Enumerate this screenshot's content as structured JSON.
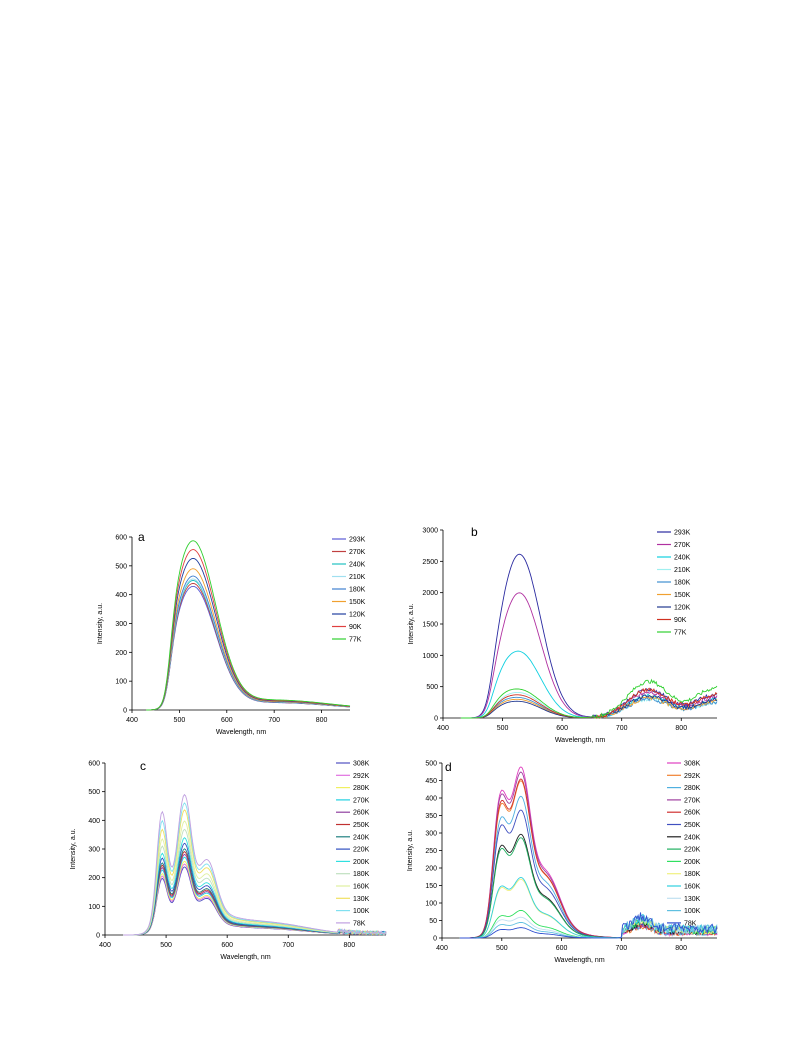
{
  "chart_data": [
    {
      "type": "line",
      "panel_label": "a",
      "xlabel": "Wavelength, nm",
      "ylabel": "Intensity, a.u.",
      "xlim": [
        400,
        860
      ],
      "ylim": [
        0,
        600
      ],
      "xticks": [
        400,
        500,
        600,
        700,
        800
      ],
      "yticks": [
        0,
        100,
        200,
        300,
        400,
        500,
        600
      ],
      "legend_position": "right",
      "series": [
        {
          "name": "293K",
          "color": "#5b5bd6",
          "peak_shoulder": 420,
          "peak_main": 420,
          "red_tail": 0
        },
        {
          "name": "270K",
          "color": "#c04040",
          "peak_shoulder": 430,
          "peak_main": 430,
          "red_tail": 0
        },
        {
          "name": "240K",
          "color": "#20c0c0",
          "peak_shoulder": 440,
          "peak_main": 440,
          "red_tail": 0
        },
        {
          "name": "210K",
          "color": "#a0e0f0",
          "peak_shoulder": 445,
          "peak_main": 445,
          "red_tail": 0
        },
        {
          "name": "180K",
          "color": "#4080d0",
          "peak_shoulder": 455,
          "peak_main": 455,
          "red_tail": 0
        },
        {
          "name": "150K",
          "color": "#f0a030",
          "peak_shoulder": 480,
          "peak_main": 480,
          "red_tail": 0
        },
        {
          "name": "120K",
          "color": "#2040a0",
          "peak_shoulder": 515,
          "peak_main": 515,
          "red_tail": 0
        },
        {
          "name": "90K",
          "color": "#e04040",
          "peak_shoulder": 545,
          "peak_main": 545,
          "red_tail": 0
        },
        {
          "name": "77K",
          "color": "#30d030",
          "peak_shoulder": 575,
          "peak_main": 575,
          "red_tail": 0
        }
      ]
    },
    {
      "type": "line",
      "panel_label": "b",
      "xlabel": "Wavelength, nm",
      "ylabel": "Intensity, a.u.",
      "xlim": [
        400,
        860
      ],
      "ylim": [
        0,
        3000
      ],
      "xticks": [
        400,
        500,
        600,
        700,
        800
      ],
      "yticks": [
        0,
        500,
        1000,
        1500,
        2000,
        2500,
        3000
      ],
      "legend_position": "right",
      "series": [
        {
          "name": "293K",
          "color": "#2a2aa0",
          "peak_shoulder": 1800,
          "peak_main": 2620,
          "red_tail": 450
        },
        {
          "name": "270K",
          "color": "#b030a0",
          "peak_shoulder": 1400,
          "peak_main": 2000,
          "red_tail": 400
        },
        {
          "name": "240K",
          "color": "#10d0e0",
          "peak_shoulder": 880,
          "peak_main": 1050,
          "red_tail": 350
        },
        {
          "name": "210K",
          "color": "#a0f0f0",
          "peak_shoulder": 350,
          "peak_main": 400,
          "red_tail": 300
        },
        {
          "name": "180K",
          "color": "#4090d0",
          "peak_shoulder": 300,
          "peak_main": 320,
          "red_tail": 300
        },
        {
          "name": "150K",
          "color": "#f0a030",
          "peak_shoulder": 270,
          "peak_main": 290,
          "red_tail": 320
        },
        {
          "name": "120K",
          "color": "#203890",
          "peak_shoulder": 240,
          "peak_main": 260,
          "red_tail": 350
        },
        {
          "name": "90K",
          "color": "#d03020",
          "peak_shoulder": 330,
          "peak_main": 360,
          "red_tail": 450
        },
        {
          "name": "77K",
          "color": "#30d030",
          "peak_shoulder": 420,
          "peak_main": 450,
          "red_tail": 580
        }
      ]
    },
    {
      "type": "line",
      "panel_label": "c",
      "xlabel": "Wavelength, nm",
      "ylabel": "Intensity, a.u.",
      "xlim": [
        400,
        860
      ],
      "ylim": [
        0,
        600
      ],
      "xticks": [
        400,
        500,
        600,
        700,
        800
      ],
      "yticks": [
        0,
        100,
        200,
        300,
        400,
        500,
        600
      ],
      "legend_position": "right",
      "series": [
        {
          "name": "308K",
          "color": "#5050c0",
          "peak_shoulder": 235,
          "peak_main": 245,
          "red_tail": 0
        },
        {
          "name": "292K",
          "color": "#e070e0",
          "peak_shoulder": 245,
          "peak_main": 255,
          "red_tail": 0
        },
        {
          "name": "280K",
          "color": "#f0f060",
          "peak_shoulder": 255,
          "peak_main": 265,
          "red_tail": 0
        },
        {
          "name": "270K",
          "color": "#20d0e0",
          "peak_shoulder": 270,
          "peak_main": 280,
          "red_tail": 0
        },
        {
          "name": "260K",
          "color": "#9040a0",
          "peak_shoulder": 280,
          "peak_main": 290,
          "red_tail": 0
        },
        {
          "name": "250K",
          "color": "#c03030",
          "peak_shoulder": 290,
          "peak_main": 300,
          "red_tail": 0
        },
        {
          "name": "240K",
          "color": "#208080",
          "peak_shoulder": 300,
          "peak_main": 310,
          "red_tail": 0
        },
        {
          "name": "220K",
          "color": "#3050c0",
          "peak_shoulder": 320,
          "peak_main": 330,
          "red_tail": 0
        },
        {
          "name": "200K",
          "color": "#30e0e0",
          "peak_shoulder": 340,
          "peak_main": 350,
          "red_tail": 0
        },
        {
          "name": "180K",
          "color": "#c0e0c0",
          "peak_shoulder": 370,
          "peak_main": 380,
          "red_tail": 0
        },
        {
          "name": "160K",
          "color": "#e0f0a0",
          "peak_shoulder": 400,
          "peak_main": 410,
          "red_tail": 0
        },
        {
          "name": "130K",
          "color": "#f0e060",
          "peak_shoulder": 440,
          "peak_main": 450,
          "red_tail": 0
        },
        {
          "name": "100K",
          "color": "#80e0f0",
          "peak_shoulder": 480,
          "peak_main": 475,
          "red_tail": 0
        },
        {
          "name": "78K",
          "color": "#c0a0e0",
          "peak_shoulder": 520,
          "peak_main": 505,
          "red_tail": 0
        }
      ]
    },
    {
      "type": "line",
      "panel_label": "d",
      "xlabel": "Wavelength, nm",
      "ylabel": "Intensity, a.u.",
      "xlim": [
        400,
        860
      ],
      "ylim": [
        0,
        500
      ],
      "xticks": [
        400,
        500,
        600,
        700,
        800
      ],
      "yticks": [
        0,
        50,
        100,
        150,
        200,
        250,
        300,
        350,
        400,
        450,
        500
      ],
      "legend_position": "right",
      "series": [
        {
          "name": "308K",
          "color": "#e040c0",
          "peak_shoulder": 440,
          "peak_main": 495,
          "red_tail": 30
        },
        {
          "name": "292K",
          "color": "#f08030",
          "peak_shoulder": 400,
          "peak_main": 455,
          "red_tail": 30
        },
        {
          "name": "280K",
          "color": "#50b0e0",
          "peak_shoulder": 360,
          "peak_main": 410,
          "red_tail": 30
        },
        {
          "name": "270K",
          "color": "#a040a0",
          "peak_shoulder": 430,
          "peak_main": 480,
          "red_tail": 35
        },
        {
          "name": "260K",
          "color": "#d03030",
          "peak_shoulder": 410,
          "peak_main": 460,
          "red_tail": 35
        },
        {
          "name": "250K",
          "color": "#4050c0",
          "peak_shoulder": 340,
          "peak_main": 370,
          "red_tail": 40
        },
        {
          "name": "240K",
          "color": "#202020",
          "peak_shoulder": 280,
          "peak_main": 300,
          "red_tail": 40
        },
        {
          "name": "220K",
          "color": "#20b060",
          "peak_shoulder": 270,
          "peak_main": 290,
          "red_tail": 45
        },
        {
          "name": "200K",
          "color": "#30e060",
          "peak_shoulder": 65,
          "peak_main": 80,
          "red_tail": 45
        },
        {
          "name": "180K",
          "color": "#f0f080",
          "peak_shoulder": 150,
          "peak_main": 170,
          "red_tail": 45
        },
        {
          "name": "160K",
          "color": "#30d0e0",
          "peak_shoulder": 155,
          "peak_main": 175,
          "red_tail": 50
        },
        {
          "name": "130K",
          "color": "#c0e0f0",
          "peak_shoulder": 55,
          "peak_main": 60,
          "red_tail": 50
        },
        {
          "name": "100K",
          "color": "#60c0e0",
          "peak_shoulder": 40,
          "peak_main": 45,
          "red_tail": 55
        },
        {
          "name": "78K",
          "color": "#3050d0",
          "peak_shoulder": 25,
          "peak_main": 30,
          "red_tail": 55
        }
      ]
    }
  ]
}
